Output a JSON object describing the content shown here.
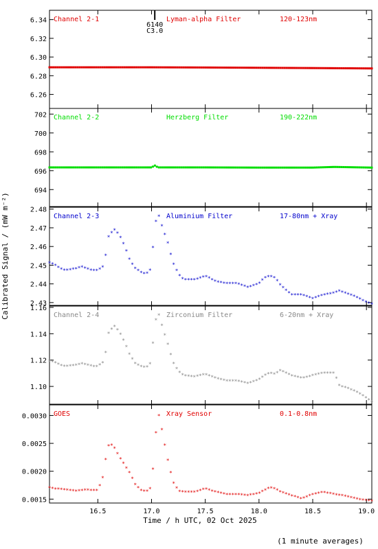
{
  "figure": {
    "ylabel": "Calibrated Signal / (mW m⁻²)",
    "xlabel": "Time / h UTC, 02 Oct 2025",
    "footnote": "(1 minute averages)",
    "flare_marker": {
      "x": 17.03,
      "label_top": "6140",
      "label_bottom": "C3.0"
    }
  },
  "chart_data": [
    {
      "type": "scatter",
      "channel": "Channel 2-1",
      "filter": "Lyman-alpha Filter",
      "band": "120-123nm",
      "color": "#e00000",
      "ylim": [
        6.245,
        6.35
      ],
      "yticks": [
        6.26,
        6.28,
        6.3,
        6.32,
        6.34
      ],
      "ytick_labels": [
        "6.26",
        "6.28",
        "6.30",
        "6.32",
        "6.34"
      ],
      "xlim": [
        16.05,
        19.05
      ],
      "grid": false,
      "series": [
        {
          "x": [
            16.05,
            17.0,
            17.5,
            18.0,
            18.5,
            19.05
          ],
          "y": [
            6.289,
            6.289,
            6.2888,
            6.2885,
            6.2882,
            6.2878
          ]
        }
      ]
    },
    {
      "type": "scatter",
      "channel": "Channel 2-2",
      "filter": "Herzberg Filter",
      "band": "190-222nm",
      "color": "#00dd00",
      "ylim": [
        692.2,
        702.6
      ],
      "yticks": [
        694,
        696,
        698,
        700,
        702
      ],
      "ytick_labels": [
        "694",
        "696",
        "698",
        "700",
        "702"
      ],
      "xlim": [
        16.05,
        19.05
      ],
      "grid": false,
      "series": [
        {
          "x": [
            16.05,
            17.0,
            17.03,
            17.06,
            17.5,
            18.0,
            18.5,
            18.7,
            19.05
          ],
          "y": [
            696.35,
            696.35,
            696.55,
            696.35,
            696.35,
            696.33,
            696.33,
            696.4,
            696.33
          ]
        }
      ]
    },
    {
      "type": "scatter",
      "channel": "Channel 2-3",
      "filter": "Aluminium Filter",
      "band": "17-80nm + Xray",
      "color": "#0000cc",
      "ylim": [
        2.4285,
        2.481
      ],
      "yticks": [
        2.43,
        2.44,
        2.45,
        2.46,
        2.47,
        2.48
      ],
      "ytick_labels": [
        "2.43",
        "2.44",
        "2.45",
        "2.46",
        "2.47",
        "2.48"
      ],
      "xlim": [
        16.05,
        19.05
      ],
      "grid": false,
      "series": [
        {
          "x": [
            16.05,
            16.1,
            16.15,
            16.2,
            16.3,
            16.35,
            16.4,
            16.45,
            16.5,
            16.55,
            16.58,
            16.6,
            16.65,
            16.7,
            16.75,
            16.8,
            16.85,
            16.9,
            16.95,
            17.0,
            17.02,
            17.05,
            17.07,
            17.1,
            17.15,
            17.2,
            17.25,
            17.3,
            17.4,
            17.5,
            17.6,
            17.7,
            17.8,
            17.9,
            18.0,
            18.05,
            18.1,
            18.15,
            18.2,
            18.3,
            18.4,
            18.5,
            18.6,
            18.7,
            18.75,
            18.8,
            18.9,
            19.0,
            19.05
          ],
          "y": [
            2.451,
            2.45,
            2.448,
            2.447,
            2.448,
            2.449,
            2.448,
            2.447,
            2.447,
            2.449,
            2.457,
            2.465,
            2.469,
            2.466,
            2.46,
            2.452,
            2.448,
            2.446,
            2.445,
            2.448,
            2.465,
            2.477,
            2.476,
            2.47,
            2.462,
            2.451,
            2.445,
            2.442,
            2.442,
            2.444,
            2.441,
            2.44,
            2.44,
            2.438,
            2.44,
            2.443,
            2.444,
            2.443,
            2.439,
            2.434,
            2.434,
            2.432,
            2.434,
            2.435,
            2.436,
            2.435,
            2.433,
            2.43,
            2.429
          ]
        }
      ]
    },
    {
      "type": "scatter",
      "channel": "Channel 2-4",
      "filter": "Zirconium Filter",
      "band": "6-20nm + Xray",
      "color": "#888888",
      "ylim": [
        1.0865,
        1.161
      ],
      "yticks": [
        1.1,
        1.12,
        1.14,
        1.16
      ],
      "ytick_labels": [
        "1.10",
        "1.12",
        "1.14",
        "1.16"
      ],
      "xlim": [
        16.05,
        19.05
      ],
      "grid": false,
      "series": [
        {
          "x": [
            16.05,
            16.1,
            16.15,
            16.2,
            16.3,
            16.35,
            16.4,
            16.45,
            16.5,
            16.55,
            16.58,
            16.6,
            16.65,
            16.7,
            16.75,
            16.8,
            16.85,
            16.9,
            16.95,
            17.0,
            17.02,
            17.05,
            17.07,
            17.1,
            17.15,
            17.2,
            17.25,
            17.3,
            17.4,
            17.5,
            17.6,
            17.7,
            17.8,
            17.9,
            18.0,
            18.05,
            18.1,
            18.15,
            18.2,
            18.3,
            18.4,
            18.5,
            18.6,
            18.7,
            18.75,
            18.8,
            18.9,
            19.0,
            19.05
          ],
          "y": [
            1.119,
            1.118,
            1.116,
            1.115,
            1.116,
            1.117,
            1.116,
            1.115,
            1.115,
            1.118,
            1.128,
            1.14,
            1.146,
            1.141,
            1.133,
            1.123,
            1.117,
            1.115,
            1.114,
            1.118,
            1.14,
            1.155,
            1.154,
            1.145,
            1.132,
            1.118,
            1.111,
            1.108,
            1.107,
            1.109,
            1.106,
            1.104,
            1.104,
            1.102,
            1.105,
            1.108,
            1.11,
            1.109,
            1.112,
            1.108,
            1.106,
            1.108,
            1.11,
            1.11,
            1.1,
            1.099,
            1.096,
            1.091,
            1.088
          ]
        }
      ]
    },
    {
      "type": "scatter",
      "channel": "GOES",
      "filter": "Xray Sensor",
      "band": "0.1-0.8nm",
      "color": "#e00000",
      "ylim": [
        0.00143,
        0.00319
      ],
      "yticks": [
        0.0015,
        0.002,
        0.0025,
        0.003
      ],
      "ytick_labels": [
        "0.0015",
        "0.0020",
        "0.0025",
        "0.0030"
      ],
      "xlim": [
        16.05,
        19.05
      ],
      "grid": false,
      "series": [
        {
          "x": [
            16.05,
            16.1,
            16.2,
            16.3,
            16.4,
            16.45,
            16.5,
            16.55,
            16.58,
            16.6,
            16.62,
            16.65,
            16.7,
            16.75,
            16.8,
            16.85,
            16.9,
            16.95,
            17.0,
            17.02,
            17.05,
            17.07,
            17.1,
            17.15,
            17.2,
            17.25,
            17.3,
            17.4,
            17.5,
            17.6,
            17.7,
            17.8,
            17.9,
            18.0,
            18.1,
            18.15,
            18.2,
            18.3,
            18.4,
            18.5,
            18.6,
            18.7,
            18.8,
            18.9,
            19.0,
            19.05
          ],
          "y": [
            0.0017,
            0.00168,
            0.00166,
            0.00164,
            0.00166,
            0.00165,
            0.00165,
            0.0019,
            0.0023,
            0.00245,
            0.00248,
            0.00243,
            0.00225,
            0.0021,
            0.00195,
            0.00175,
            0.00165,
            0.00163,
            0.0017,
            0.0022,
            0.0029,
            0.003,
            0.0027,
            0.0022,
            0.0018,
            0.00164,
            0.00162,
            0.00162,
            0.00168,
            0.00162,
            0.00158,
            0.00158,
            0.00156,
            0.0016,
            0.0017,
            0.00168,
            0.00162,
            0.00156,
            0.0015,
            0.00158,
            0.00162,
            0.00158,
            0.00155,
            0.0015,
            0.00147,
            0.00146
          ]
        }
      ]
    }
  ],
  "x_axis": {
    "ticks": [
      16.5,
      17.0,
      17.5,
      18.0,
      18.5,
      19.0
    ],
    "tick_labels": [
      "16.5",
      "17.0",
      "17.5",
      "18.0",
      "18.5",
      "19.0"
    ]
  }
}
